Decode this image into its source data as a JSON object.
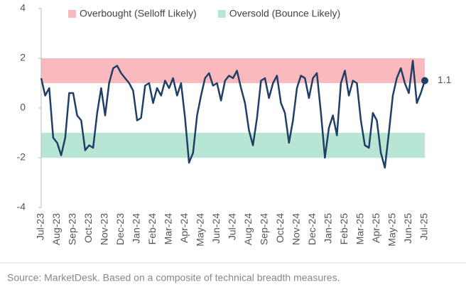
{
  "chart_data": {
    "type": "line",
    "categories": [
      "Jul-23",
      null,
      null,
      null,
      "Aug-23",
      null,
      null,
      null,
      "Sep-23",
      null,
      null,
      null,
      "Oct-23",
      null,
      null,
      null,
      "Nov-23",
      null,
      null,
      null,
      "Dec-23",
      null,
      null,
      null,
      "Jan-24",
      null,
      null,
      null,
      "Feb-24",
      null,
      null,
      null,
      "Mar-24",
      null,
      null,
      null,
      "Apr-24",
      null,
      null,
      null,
      "May-24",
      null,
      null,
      null,
      "Jun-24",
      null,
      null,
      null,
      "Jul-24",
      null,
      null,
      null,
      "Aug-24",
      null,
      null,
      null,
      "Sep-24",
      null,
      null,
      null,
      "Oct-24",
      null,
      null,
      null,
      "Nov-24",
      null,
      null,
      null,
      "Dec-24",
      null,
      null,
      null,
      "Jan-25",
      null,
      null,
      null,
      "Feb-25",
      null,
      null,
      null,
      "Mar-25",
      null,
      null,
      null,
      "Apr-25",
      null,
      null,
      null,
      "May-25",
      null,
      null,
      null,
      "Jun-25",
      null,
      null,
      null,
      "Jul-25"
    ],
    "series": [
      {
        "color": "#1f3f66",
        "values": [
          1.2,
          0.5,
          0.8,
          -1.2,
          -1.4,
          -1.9,
          -1.2,
          0.6,
          0.6,
          -0.3,
          -0.5,
          -1.7,
          -1.5,
          -1.6,
          -0.2,
          0.8,
          -0.3,
          1.0,
          1.6,
          1.7,
          1.4,
          1.2,
          1.0,
          0.7,
          -0.5,
          -0.4,
          0.9,
          1.0,
          0.2,
          0.8,
          0.5,
          1.1,
          0.8,
          1.2,
          0.5,
          1.0,
          -0.4,
          -2.2,
          -1.8,
          -0.3,
          0.5,
          1.2,
          1.4,
          0.9,
          1.0,
          0.3,
          1.1,
          1.3,
          1.2,
          1.5,
          0.8,
          0.2,
          -0.9,
          -1.5,
          -0.4,
          1.1,
          1.2,
          0.4,
          1.0,
          1.3,
          0.2,
          -0.2,
          -1.4,
          -0.5,
          0.8,
          1.3,
          1.2,
          0.4,
          1.2,
          1.4,
          -0.2,
          -2.0,
          -0.8,
          -0.3,
          -1.1,
          1.0,
          1.5,
          0.5,
          1.1,
          1.0,
          -0.5,
          -1.5,
          -1.6,
          -0.2,
          -0.5,
          -1.8,
          -2.4,
          -1.0,
          0.5,
          1.2,
          1.6,
          1.0,
          0.6,
          1.9,
          0.2,
          0.6,
          1.1
        ],
        "end_label": "1.1"
      }
    ],
    "bands": [
      {
        "name": "Overbought (Selloff Likely)",
        "range": [
          1,
          2
        ],
        "color": "#f9b9bd"
      },
      {
        "name": "Oversold (Bounce Likely)",
        "range": [
          -2,
          -1
        ],
        "color": "#b8e6d5"
      }
    ],
    "ylim": [
      -4,
      4
    ],
    "yticks": [
      -4,
      -2,
      0,
      2,
      4
    ],
    "source": "Source: MarketDesk. Based on a composite of technical breadth measures."
  }
}
